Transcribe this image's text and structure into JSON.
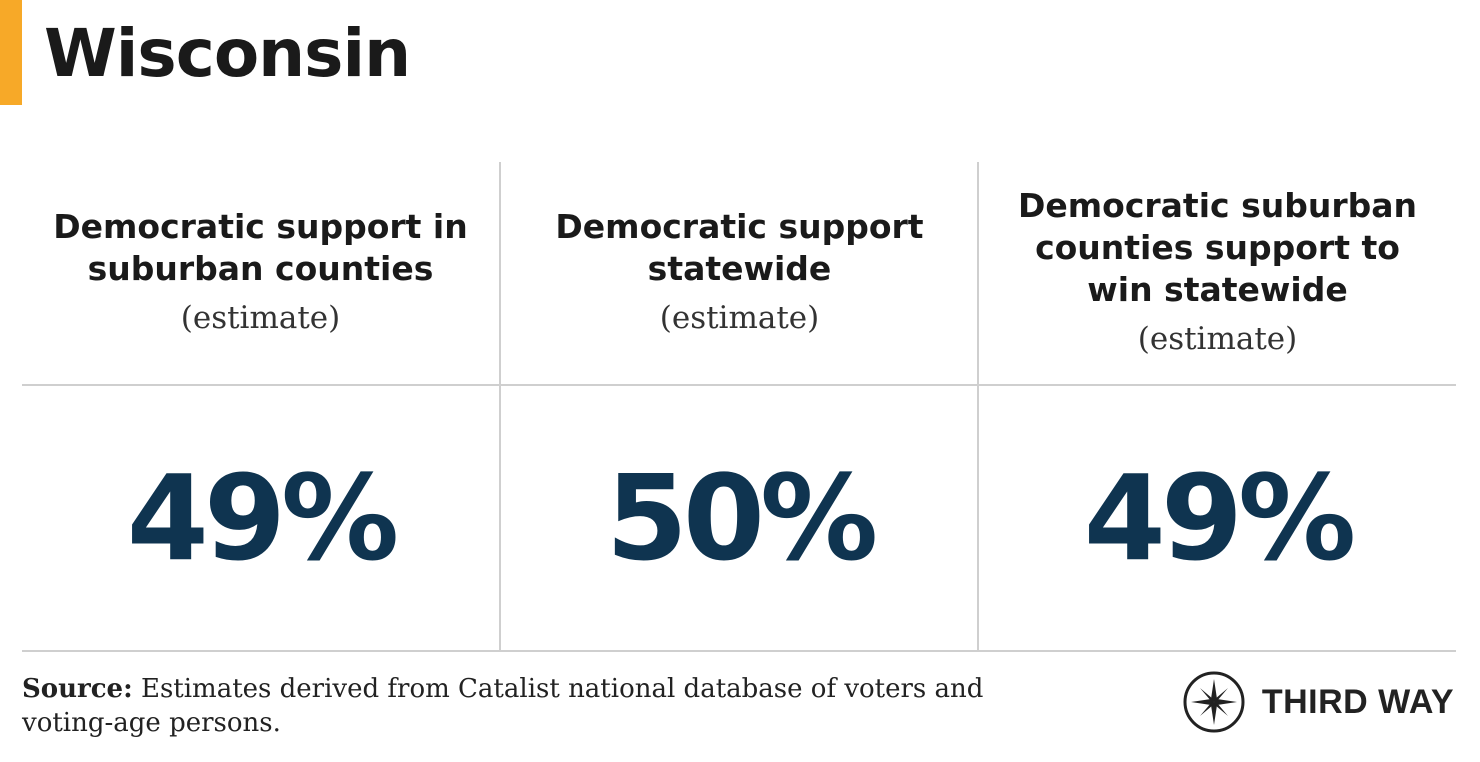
{
  "title": "Wisconsin",
  "colors": {
    "accent": "#f7a928",
    "value": "#0f3450",
    "grid": "#cfcfcf"
  },
  "columns": [
    {
      "heading": "Democratic support in suburban counties",
      "subheading": "(estimate)",
      "value": "49%"
    },
    {
      "heading": "Democratic support statewide",
      "subheading": "(estimate)",
      "value": "50%"
    },
    {
      "heading": "Democratic suburban counties support to win statewide",
      "subheading": "(estimate)",
      "value": "49%"
    }
  ],
  "source": {
    "label": "Source:",
    "text": " Estimates derived from Catalist national database of voters and voting-age persons."
  },
  "brand": {
    "name": "THIRD WAY",
    "icon": "compass-star-icon"
  }
}
